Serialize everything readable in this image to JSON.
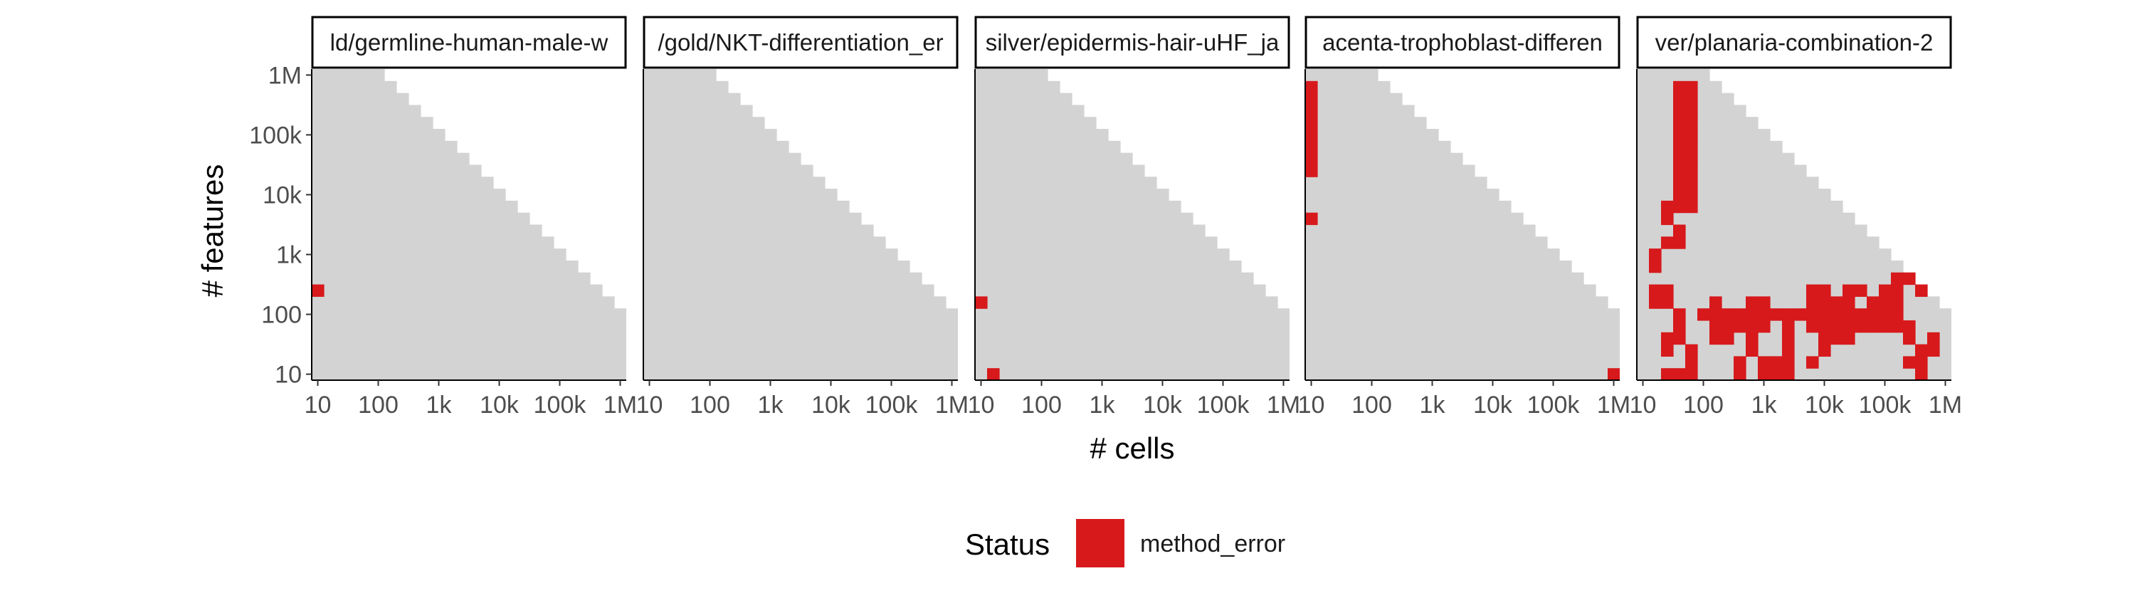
{
  "chart_data": {
    "type": "heatmap",
    "xlabel": "# cells",
    "ylabel": "# features",
    "x_scale": "log10",
    "y_scale": "log10",
    "xlim": [
      10,
      1000000
    ],
    "ylim": [
      10,
      1000000
    ],
    "x_ticks": [
      10,
      100,
      1000,
      10000,
      100000,
      1000000
    ],
    "x_tick_labels": [
      "10",
      "100",
      "1k",
      "10k",
      "100k",
      "1M"
    ],
    "y_ticks": [
      10,
      100,
      1000,
      10000,
      100000,
      1000000
    ],
    "y_tick_labels": [
      "10",
      "100",
      "1k",
      "10k",
      "100k",
      "1M"
    ],
    "grid_cells_per_decade": 5,
    "background_color": "#d3d3d3",
    "status_colors": {
      "method_error": "#d7191c"
    },
    "legend": {
      "title": "Status",
      "entries": [
        "method_error"
      ],
      "position": "bottom"
    },
    "panels": [
      {
        "title": "ld/germline-human-male-w",
        "method_error_cells": [
          [
            0,
            7
          ]
        ]
      },
      {
        "title": "/gold/NKT-differentiation_er",
        "method_error_cells": []
      },
      {
        "title": "silver/epidermis-hair-uHF_ja",
        "method_error_cells": [
          [
            0,
            6
          ],
          [
            1,
            0
          ]
        ]
      },
      {
        "title": "acenta-trophoblast-differen",
        "method_error_cells": [
          [
            0,
            17
          ],
          [
            0,
            18
          ],
          [
            0,
            19
          ],
          [
            0,
            20
          ],
          [
            0,
            21
          ],
          [
            0,
            22
          ],
          [
            0,
            23
          ],
          [
            0,
            24
          ],
          [
            0,
            13
          ],
          [
            25,
            0
          ]
        ]
      },
      {
        "title": "ver/planaria-combination-2",
        "method_error_cells": [
          [
            3,
            14
          ],
          [
            3,
            15
          ],
          [
            3,
            16
          ],
          [
            3,
            17
          ],
          [
            3,
            18
          ],
          [
            3,
            19
          ],
          [
            3,
            20
          ],
          [
            3,
            21
          ],
          [
            3,
            22
          ],
          [
            3,
            23
          ],
          [
            3,
            24
          ],
          [
            4,
            14
          ],
          [
            4,
            15
          ],
          [
            4,
            16
          ],
          [
            4,
            17
          ],
          [
            4,
            18
          ],
          [
            4,
            19
          ],
          [
            4,
            20
          ],
          [
            4,
            21
          ],
          [
            4,
            22
          ],
          [
            4,
            23
          ],
          [
            4,
            24
          ],
          [
            2,
            14
          ],
          [
            2,
            13
          ],
          [
            3,
            12
          ],
          [
            3,
            11
          ],
          [
            2,
            11
          ],
          [
            1,
            10
          ],
          [
            1,
            9
          ],
          [
            1,
            7
          ],
          [
            1,
            6
          ],
          [
            2,
            7
          ],
          [
            2,
            6
          ],
          [
            3,
            5
          ],
          [
            3,
            3
          ],
          [
            3,
            4
          ],
          [
            4,
            2
          ],
          [
            4,
            1
          ],
          [
            2,
            0
          ],
          [
            3,
            0
          ],
          [
            4,
            0
          ],
          [
            2,
            2
          ],
          [
            2,
            3
          ],
          [
            5,
            5
          ],
          [
            6,
            5
          ],
          [
            7,
            5
          ],
          [
            8,
            5
          ],
          [
            9,
            5
          ],
          [
            10,
            5
          ],
          [
            11,
            5
          ],
          [
            12,
            5
          ],
          [
            13,
            5
          ],
          [
            14,
            5
          ],
          [
            15,
            5
          ],
          [
            16,
            5
          ],
          [
            17,
            5
          ],
          [
            18,
            5
          ],
          [
            19,
            5
          ],
          [
            20,
            5
          ],
          [
            21,
            5
          ],
          [
            6,
            6
          ],
          [
            9,
            6
          ],
          [
            10,
            6
          ],
          [
            14,
            6
          ],
          [
            15,
            6
          ],
          [
            16,
            6
          ],
          [
            17,
            6
          ],
          [
            19,
            6
          ],
          [
            20,
            6
          ],
          [
            21,
            6
          ],
          [
            14,
            7
          ],
          [
            15,
            7
          ],
          [
            17,
            7
          ],
          [
            18,
            7
          ],
          [
            20,
            7
          ],
          [
            21,
            7
          ],
          [
            6,
            4
          ],
          [
            7,
            4
          ],
          [
            8,
            4
          ],
          [
            9,
            4
          ],
          [
            10,
            4
          ],
          [
            12,
            4
          ],
          [
            14,
            4
          ],
          [
            15,
            4
          ],
          [
            16,
            4
          ],
          [
            17,
            4
          ],
          [
            18,
            4
          ],
          [
            19,
            4
          ],
          [
            20,
            4
          ],
          [
            21,
            4
          ],
          [
            22,
            4
          ],
          [
            6,
            3
          ],
          [
            7,
            3
          ],
          [
            9,
            3
          ],
          [
            12,
            3
          ],
          [
            15,
            3
          ],
          [
            16,
            3
          ],
          [
            17,
            3
          ],
          [
            22,
            3
          ],
          [
            24,
            3
          ],
          [
            9,
            2
          ],
          [
            12,
            2
          ],
          [
            15,
            2
          ],
          [
            23,
            2
          ],
          [
            24,
            2
          ],
          [
            8,
            1
          ],
          [
            10,
            1
          ],
          [
            11,
            1
          ],
          [
            12,
            1
          ],
          [
            14,
            1
          ],
          [
            23,
            1
          ],
          [
            22,
            1
          ],
          [
            8,
            0
          ],
          [
            10,
            0
          ],
          [
            11,
            0
          ],
          [
            12,
            0
          ],
          [
            23,
            0
          ],
          [
            21,
            8
          ],
          [
            22,
            8
          ],
          [
            23,
            7
          ]
        ]
      }
    ]
  }
}
